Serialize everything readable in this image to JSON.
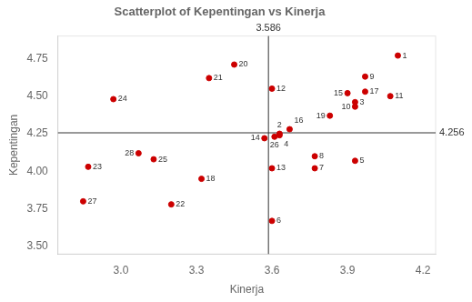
{
  "chart_data": {
    "type": "scatter",
    "title": "Scatterplot of Kepentingan vs Kinerja",
    "xlabel": "Kinerja",
    "ylabel": "Kepentingan",
    "xlim": [
      2.75,
      4.25
    ],
    "ylim": [
      3.45,
      4.9
    ],
    "xticks": [
      {
        "value": 3.0,
        "label": "3.0"
      },
      3.3,
      3.6,
      3.9,
      4.2
    ],
    "yticks": [
      {
        "value": 3.5,
        "label": "3.50"
      },
      3.75,
      {
        "value": 4.0,
        "label": "4.00"
      },
      4.25,
      {
        "value": 4.5,
        "label": "4.50"
      },
      4.75
    ],
    "grid": false,
    "color": "#cc0000",
    "x": [
      4.1,
      3.63,
      3.93,
      3.63,
      3.93,
      3.6,
      3.77,
      3.77,
      3.97,
      3.93,
      4.07,
      3.6,
      3.6,
      3.57,
      3.9,
      3.67,
      3.97,
      3.32,
      3.83,
      3.45,
      3.35,
      3.2,
      2.87,
      2.97,
      3.13,
      3.61,
      2.85,
      3.07
    ],
    "values": [
      4.77,
      4.25,
      4.46,
      4.24,
      4.07,
      3.67,
      4.02,
      4.1,
      4.63,
      4.43,
      4.5,
      4.55,
      4.02,
      4.22,
      4.52,
      4.28,
      4.53,
      3.95,
      4.37,
      4.71,
      4.62,
      3.78,
      4.03,
      4.48,
      4.08,
      4.23,
      3.8,
      4.12
    ],
    "point_labels": [
      "1",
      "2",
      "3",
      "4",
      "5",
      "6",
      "7",
      "8",
      "9",
      "10",
      "11",
      "12",
      "13",
      "14",
      "15",
      "16",
      "17",
      "18",
      "19",
      "20",
      "21",
      "22",
      "23",
      "24",
      "25",
      "26",
      "27",
      "28"
    ],
    "annotations": [
      {
        "type": "vline",
        "x": 3.586,
        "label": "3.586"
      },
      {
        "type": "hline",
        "y": 4.256,
        "label": "4.256"
      }
    ]
  }
}
